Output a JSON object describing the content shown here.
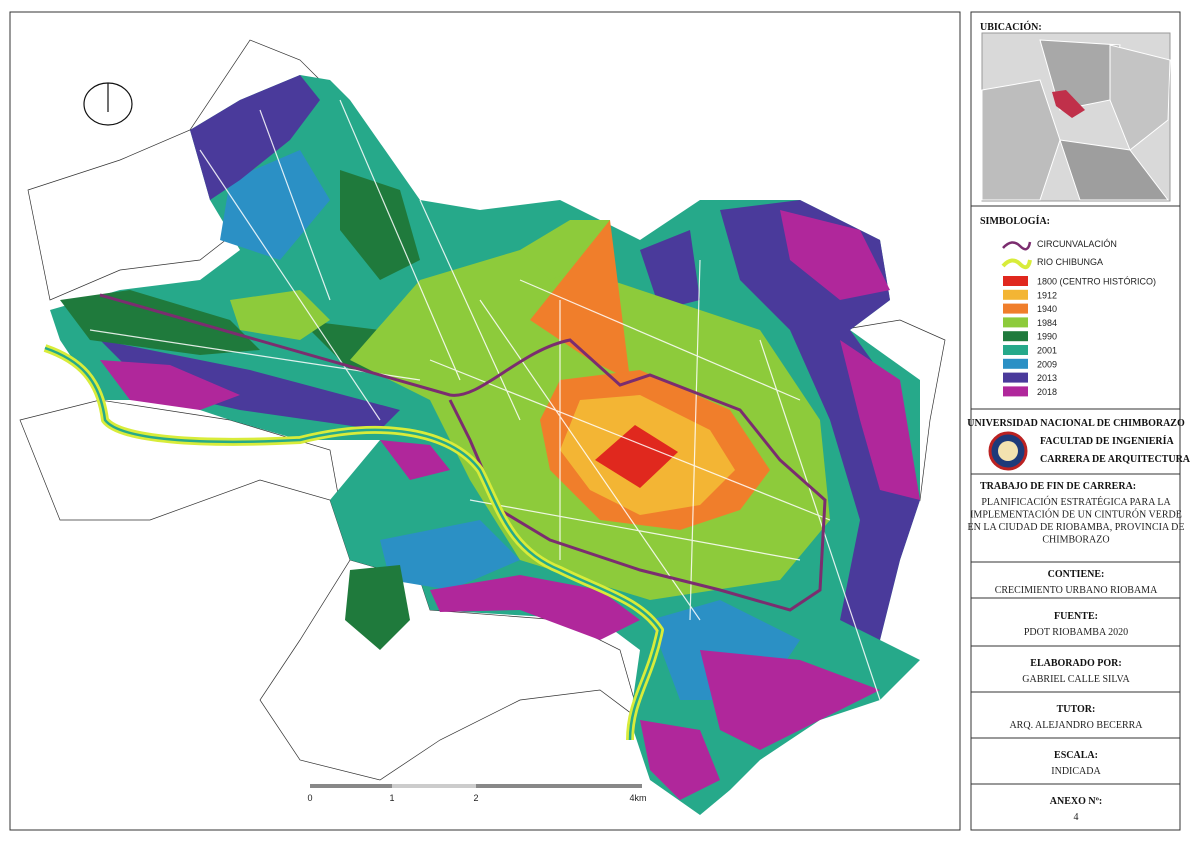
{
  "location_panel": {
    "title": "UBICACIÓN:"
  },
  "legend": {
    "title": "SIMBOLOGÍA:",
    "lines": [
      {
        "label": "CIRCUNVALACIÓN",
        "color": "#7b2d6f"
      },
      {
        "label": "RIO CHIBUNGA",
        "color": "#d8ec3a"
      }
    ],
    "items": [
      {
        "label": "1800 (CENTRO HISTÓRICO)",
        "color": "#e0281e"
      },
      {
        "label": "1912",
        "color": "#f3b534"
      },
      {
        "label": "1940",
        "color": "#f07e2b"
      },
      {
        "label": "1984",
        "color": "#8dcb3b"
      },
      {
        "label": "1990",
        "color": "#1f7a3c"
      },
      {
        "label": "2001",
        "color": "#26a98a"
      },
      {
        "label": "2009",
        "color": "#2b90c5"
      },
      {
        "label": "2013",
        "color": "#4a3a9b"
      },
      {
        "label": "2018",
        "color": "#b0279b"
      }
    ]
  },
  "institution": {
    "university": "UNIVERSIDAD NACIONAL DE CHIMBORAZO",
    "faculty": "FACULTAD DE INGENIERÍA",
    "career": "CARRERA DE ARQUITECTURA"
  },
  "sections": [
    {
      "heading": "TRABAJO DE FIN DE CARRERA:",
      "lines": [
        "PLANIFICACIÓN ESTRATÉGICA PARA LA",
        "IMPLEMENTACIÓN DE UN CINTURÓN VERDE",
        "EN LA CIUDAD DE RIOBAMBA, PROVINCIA DE",
        "CHIMBORAZO"
      ]
    },
    {
      "heading": "CONTIENE:",
      "lines": [
        "CRECIMIENTO URBANO RIOBAMA"
      ]
    },
    {
      "heading": "FUENTE:",
      "lines": [
        "PDOT RIOBAMBA 2020"
      ]
    },
    {
      "heading": "ELABORADO POR:",
      "lines": [
        "GABRIEL CALLE SILVA"
      ]
    },
    {
      "heading": "TUTOR:",
      "lines": [
        "ARQ. ALEJANDRO BECERRA"
      ]
    },
    {
      "heading": "ESCALA:",
      "lines": [
        "INDICADA"
      ]
    },
    {
      "heading": "ANEXO Nº:",
      "lines": [
        "4"
      ]
    }
  ],
  "scale_bar": {
    "labels": [
      "0",
      "1",
      "2",
      "4km"
    ]
  }
}
